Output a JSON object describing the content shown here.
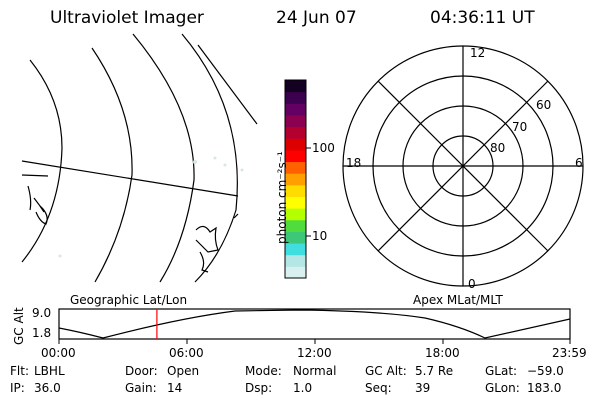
{
  "header": {
    "title": "Ultraviolet Imager",
    "date": "24 Jun 07",
    "time": "04:36:11 UT"
  },
  "colorbar": {
    "unit_label": "photon cm⁻²s⁻¹",
    "ticks": [
      "100",
      "10"
    ],
    "colors": [
      "#d8f0f0",
      "#b4e6e6",
      "#40dede",
      "#3cc878",
      "#50dc3c",
      "#b4ff00",
      "#ffff00",
      "#ffdc00",
      "#ffa000",
      "#ff6000",
      "#ff0000",
      "#dc0000",
      "#b40030",
      "#8c0050",
      "#640064",
      "#3c0050",
      "#140020"
    ]
  },
  "polar": {
    "mlt_labels": {
      "top": "12",
      "left": "18",
      "right": "6",
      "bottom": "0"
    },
    "lat_labels": [
      "60",
      "70",
      "80"
    ]
  },
  "altitude": {
    "ylabel": "GC Alt",
    "yticks": [
      "9.0",
      "1.8"
    ],
    "left_title": "Geographic Lat/Lon",
    "right_title": "Apex MLat/MLT",
    "xticks": [
      "00:00",
      "06:00",
      "12:00",
      "18:00",
      "23:59"
    ],
    "current_hour": 4.6
  },
  "info": {
    "row1": [
      {
        "label": "Flt:",
        "value": "LBHL"
      },
      {
        "label": "Door:",
        "value": "Open"
      },
      {
        "label": "Mode:",
        "value": "Normal"
      },
      {
        "label": "GC Alt:",
        "value": "5.7 Re"
      },
      {
        "label": "GLat:",
        "value": "−59.0"
      }
    ],
    "row2": [
      {
        "label": "IP:",
        "value": "36.0"
      },
      {
        "label": "Gain:",
        "value": "14"
      },
      {
        "label": "Dsp:",
        "value": "1.0"
      },
      {
        "label": "Seq:",
        "value": "39"
      },
      {
        "label": "GLon:",
        "value": "183.0"
      }
    ]
  }
}
